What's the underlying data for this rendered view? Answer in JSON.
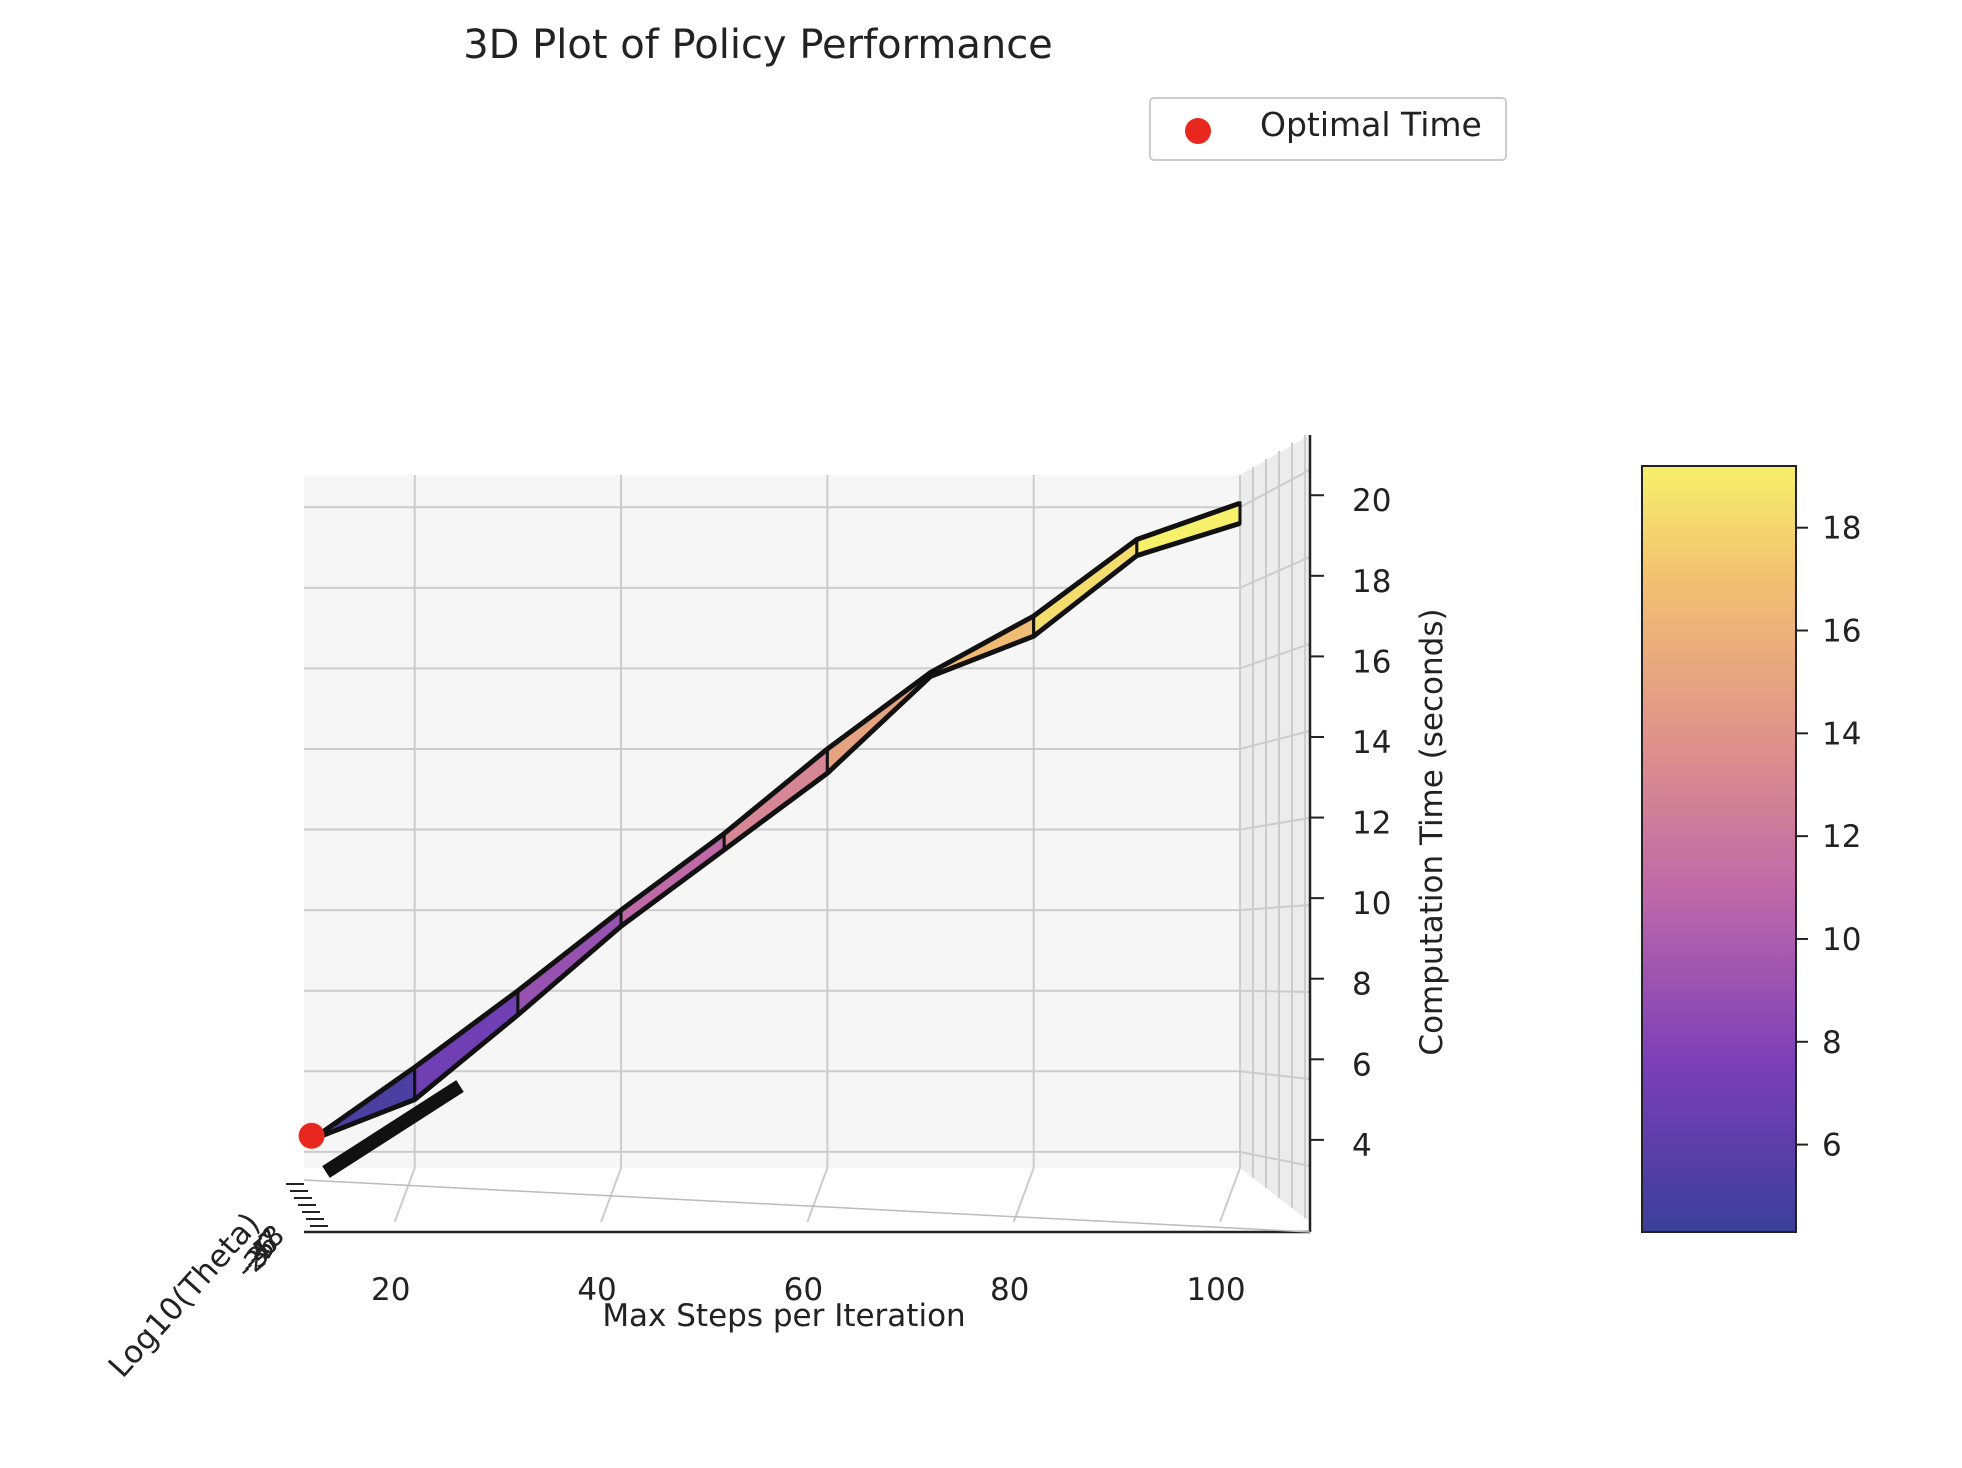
{
  "chart_data": {
    "type": "surface3d",
    "title": "3D Plot of Policy Performance",
    "xlabel": "Max Steps per Iteration",
    "ylabel": "Log10(Theta)",
    "zlabel": "Computation Time (seconds)",
    "x_ticks": [
      "20",
      "40",
      "60",
      "80",
      "100"
    ],
    "y_ticks": [
      "-8",
      "-7",
      "-6",
      "-5",
      "-4",
      "-3",
      "-2"
    ],
    "z_ticks": [
      "4",
      "6",
      "8",
      "10",
      "12",
      "14",
      "16",
      "18",
      "20"
    ],
    "xlim": [
      5,
      100
    ],
    "zlim": [
      3.6,
      20.8
    ],
    "legend": {
      "label": "Optimal Time",
      "color": "#e8281e",
      "position": "top-right"
    },
    "optimal_point": {
      "x": 10,
      "z": 4.4
    },
    "surface_ridge": {
      "x": [
        10,
        20,
        30,
        40,
        50,
        60,
        70,
        80,
        90,
        100
      ],
      "z_top": [
        4.3,
        6.1,
        8.0,
        10.0,
        11.9,
        14.0,
        15.9,
        17.3,
        19.2,
        20.1
      ],
      "z_bot": [
        4.3,
        5.3,
        7.4,
        9.6,
        11.5,
        13.4,
        15.8,
        16.8,
        18.8,
        19.6
      ]
    },
    "colorbar": {
      "colormap": "plasma",
      "range": [
        4.3,
        19.2
      ],
      "ticks": [
        "6",
        "8",
        "10",
        "12",
        "14",
        "16",
        "18"
      ]
    },
    "grid": true
  }
}
